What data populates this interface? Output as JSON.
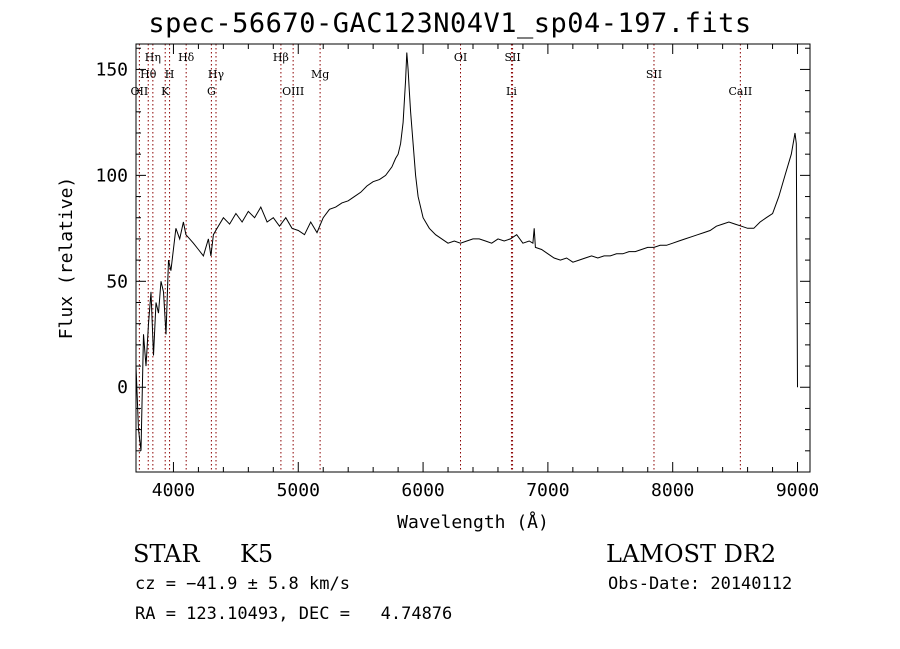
{
  "chart_data": {
    "type": "line",
    "title": "spec-56670-GAC123N04V1_sp04-197.fits",
    "xlabel": "Wavelength (Å)",
    "ylabel": "Flux (relative)",
    "xlim": [
      3700,
      9100
    ],
    "ylim": [
      -40,
      162
    ],
    "xticks": [
      4000,
      5000,
      6000,
      7000,
      8000,
      9000
    ],
    "yticks": [
      0,
      50,
      100,
      150
    ],
    "grid": false,
    "series": [
      {
        "x": [
          3700,
          3720,
          3740,
          3760,
          3780,
          3800,
          3820,
          3840,
          3860,
          3880,
          3900,
          3920,
          3940,
          3960,
          3980,
          4000,
          4020,
          4050,
          4080,
          4100,
          4130,
          4160,
          4200,
          4240,
          4280,
          4300,
          4320,
          4350,
          4400,
          4450,
          4500,
          4550,
          4600,
          4650,
          4700,
          4750,
          4800,
          4850,
          4900,
          4950,
          5000,
          5050,
          5100,
          5150,
          5200,
          5250,
          5300,
          5350,
          5400,
          5450,
          5500,
          5550,
          5600,
          5650,
          5700,
          5750,
          5780,
          5800,
          5820,
          5840,
          5860,
          5870,
          5880,
          5890,
          5900,
          5920,
          5940,
          5960,
          5980,
          6000,
          6050,
          6100,
          6150,
          6200,
          6250,
          6300,
          6350,
          6400,
          6450,
          6500,
          6550,
          6600,
          6650,
          6700,
          6750,
          6800,
          6850,
          6880,
          6890,
          6900,
          6950,
          7000,
          7050,
          7100,
          7150,
          7200,
          7250,
          7300,
          7350,
          7400,
          7450,
          7500,
          7550,
          7600,
          7650,
          7700,
          7750,
          7800,
          7850,
          7900,
          7950,
          8000,
          8050,
          8100,
          8150,
          8200,
          8250,
          8300,
          8350,
          8400,
          8450,
          8500,
          8550,
          8600,
          8650,
          8700,
          8750,
          8800,
          8850,
          8900,
          8950,
          8980,
          8990,
          9000
        ],
        "y": [
          10,
          -20,
          -30,
          25,
          10,
          30,
          45,
          15,
          40,
          35,
          50,
          45,
          25,
          60,
          55,
          65,
          75,
          70,
          78,
          72,
          70,
          68,
          65,
          62,
          70,
          62,
          72,
          75,
          80,
          77,
          82,
          78,
          83,
          80,
          85,
          78,
          80,
          76,
          80,
          75,
          74,
          72,
          78,
          73,
          80,
          84,
          85,
          87,
          88,
          90,
          92,
          95,
          97,
          98,
          100,
          104,
          108,
          110,
          115,
          125,
          145,
          158,
          150,
          140,
          130,
          115,
          100,
          90,
          85,
          80,
          75,
          72,
          70,
          68,
          69,
          68,
          69,
          70,
          70,
          69,
          68,
          70,
          69,
          70,
          72,
          68,
          69,
          68,
          75,
          66,
          65,
          63,
          61,
          60,
          61,
          59,
          60,
          61,
          62,
          61,
          62,
          62,
          63,
          63,
          64,
          64,
          65,
          66,
          66,
          67,
          67,
          68,
          69,
          70,
          71,
          72,
          73,
          74,
          76,
          77,
          78,
          77,
          76,
          75,
          75,
          78,
          80,
          82,
          90,
          100,
          110,
          120,
          115,
          0
        ]
      }
    ],
    "lines": [
      {
        "label": "OII",
        "x": 3727,
        "row": 3
      },
      {
        "label": "Hθ",
        "x": 3798,
        "row": 2
      },
      {
        "label": "Hη",
        "x": 3835,
        "row": 1
      },
      {
        "label": "K",
        "x": 3934,
        "row": 3
      },
      {
        "label": "H",
        "x": 3969,
        "row": 2
      },
      {
        "label": "Hδ",
        "x": 4102,
        "row": 1
      },
      {
        "label": "G",
        "x": 4304,
        "row": 3
      },
      {
        "label": "Hγ",
        "x": 4341,
        "row": 2
      },
      {
        "label": "Hβ",
        "x": 4861,
        "row": 1
      },
      {
        "label": "OIII",
        "x": 4959,
        "row": 3
      },
      {
        "label": "Mg",
        "x": 5175,
        "row": 2
      },
      {
        "label": "OI",
        "x": 6300,
        "row": 1
      },
      {
        "label": "SII",
        "x": 6717,
        "row": 1
      },
      {
        "label": "Li",
        "x": 6708,
        "row": 3
      },
      {
        "label": "SII",
        "x": 7850,
        "row": 2
      },
      {
        "label": "CaII",
        "x": 8542,
        "row": 3
      }
    ]
  },
  "info": {
    "class": "STAR",
    "subclass": "K5",
    "survey": "LAMOST DR2",
    "cz": "cz = −41.9 ± 5.8 km/s",
    "obs_date": "Obs-Date: 20140112",
    "coords": "RA = 123.10493, DEC =   4.74876"
  },
  "colors": {
    "axis": "#000000",
    "spectrum": "#000000",
    "line_markers": "#8b0000"
  }
}
